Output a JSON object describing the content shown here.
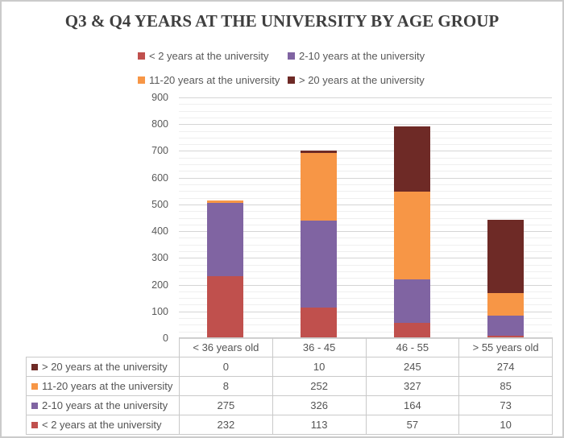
{
  "title": "Q3 & Q4 YEARS AT THE UNIVERSITY BY AGE GROUP",
  "legend": {
    "items": [
      {
        "label": "< 2 years at the university",
        "color": "#c0504d"
      },
      {
        "label": "2-10 years at the university",
        "color": "#8064a2"
      },
      {
        "label": "11-20 years at the university",
        "color": "#f79646"
      },
      {
        "label": "> 20 years at the university",
        "color": "#6e2a26"
      }
    ]
  },
  "chart_data": {
    "type": "bar",
    "stacked": true,
    "title": "Q3 & Q4 YEARS AT THE UNIVERSITY BY AGE GROUP",
    "categories": [
      "< 36 years old",
      "36 - 45",
      "46 - 55",
      "> 55 years old"
    ],
    "series": [
      {
        "name": "< 2 years at the university",
        "color": "#c0504d",
        "values": [
          232,
          113,
          57,
          10
        ]
      },
      {
        "name": "2-10 years at the university",
        "color": "#8064a2",
        "values": [
          275,
          326,
          164,
          73
        ]
      },
      {
        "name": "11-20 years at the university",
        "color": "#f79646",
        "values": [
          8,
          252,
          327,
          85
        ]
      },
      {
        "name": "> 20 years at the university",
        "color": "#6e2a26",
        "values": [
          0,
          10,
          245,
          274
        ]
      }
    ],
    "stack_order": "bottom-to-top",
    "totals": [
      515,
      701,
      793,
      442
    ],
    "ylim": [
      0,
      900
    ],
    "y_major_unit": 100,
    "y_minor_unit": 25,
    "y_tick_labels": [
      "0",
      "100",
      "200",
      "300",
      "400",
      "500",
      "600",
      "700",
      "800",
      "900"
    ],
    "grid": true,
    "legend_position": "top"
  },
  "table": {
    "header": [
      "< 36 years old",
      "36 - 45",
      "46 - 55",
      "> 55 years old"
    ],
    "rows": [
      {
        "label": "> 20 years at the university",
        "color": "#6e2a26",
        "values": [
          0,
          10,
          245,
          274
        ]
      },
      {
        "label": "11-20 years at the university",
        "color": "#f79646",
        "values": [
          8,
          252,
          327,
          85
        ]
      },
      {
        "label": "2-10 years at the university",
        "color": "#8064a2",
        "values": [
          275,
          326,
          164,
          73
        ]
      },
      {
        "label": "< 2 years at the university",
        "color": "#c0504d",
        "values": [
          232,
          113,
          57,
          10
        ]
      }
    ]
  },
  "colors": {
    "title_text": "#3f3f3f",
    "axis_text": "#595959",
    "table_border": "#c9c9c9",
    "gridline_major": "#d5d5d5",
    "gridline_minor": "#efefef",
    "frame_border": "#cbcbcb",
    "background": "#ffffff"
  }
}
